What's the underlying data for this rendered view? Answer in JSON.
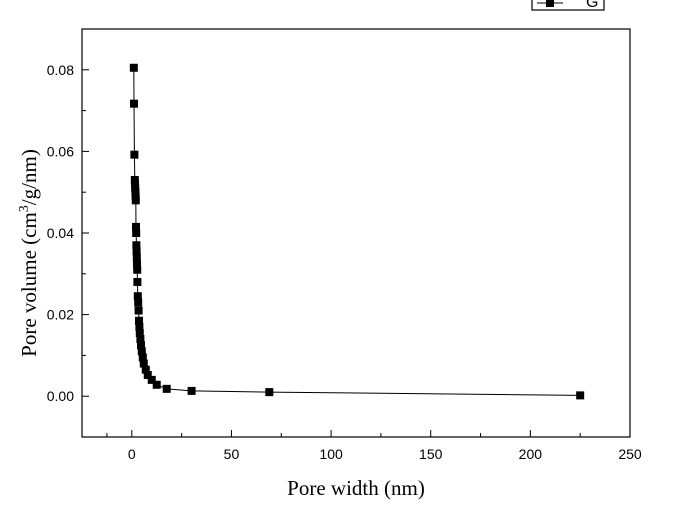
{
  "chart_data": {
    "type": "scatter",
    "xlabel": "Pore width (nm)",
    "ylabel_text": "Pore volume (cm",
    "ylabel_sup": "3",
    "ylabel_tail": "/g/nm)",
    "xlim": [
      -25,
      250
    ],
    "ylim": [
      -0.01,
      0.09
    ],
    "xticks": [
      0,
      50,
      100,
      150,
      200,
      250
    ],
    "xtick_labels": [
      "0",
      "50",
      "100",
      "150",
      "200",
      "250"
    ],
    "yticks": [
      0.0,
      0.02,
      0.04,
      0.06,
      0.08
    ],
    "ytick_labels": [
      "0.00",
      "0.02",
      "0.04",
      "0.06",
      "0.08"
    ],
    "grid": false,
    "legend": {
      "position": "top-right",
      "entries": [
        "G"
      ]
    },
    "series": [
      {
        "name": "G",
        "marker": "square",
        "line": true,
        "color": "#000000",
        "points": [
          [
            1.0,
            0.0805
          ],
          [
            1.1,
            0.0717
          ],
          [
            1.3,
            0.0592
          ],
          [
            1.5,
            0.053
          ],
          [
            1.6,
            0.052
          ],
          [
            1.7,
            0.051
          ],
          [
            1.8,
            0.05
          ],
          [
            1.9,
            0.049
          ],
          [
            2.0,
            0.048
          ],
          [
            2.1,
            0.0415
          ],
          [
            2.2,
            0.04
          ],
          [
            2.3,
            0.037
          ],
          [
            2.4,
            0.0355
          ],
          [
            2.5,
            0.034
          ],
          [
            2.6,
            0.0325
          ],
          [
            2.7,
            0.031
          ],
          [
            2.8,
            0.028
          ],
          [
            3.0,
            0.0245
          ],
          [
            3.2,
            0.023
          ],
          [
            3.4,
            0.021
          ],
          [
            3.6,
            0.0185
          ],
          [
            3.8,
            0.017
          ],
          [
            4.0,
            0.0155
          ],
          [
            4.3,
            0.014
          ],
          [
            4.6,
            0.0125
          ],
          [
            5.0,
            0.011
          ],
          [
            5.5,
            0.0095
          ],
          [
            6.0,
            0.008
          ],
          [
            7.0,
            0.0065
          ],
          [
            8.0,
            0.0052
          ],
          [
            10.0,
            0.004
          ],
          [
            12.5,
            0.0028
          ],
          [
            17.5,
            0.0018
          ],
          [
            30.0,
            0.0013
          ],
          [
            69.0,
            0.001
          ],
          [
            225.0,
            0.0002
          ]
        ]
      }
    ]
  }
}
